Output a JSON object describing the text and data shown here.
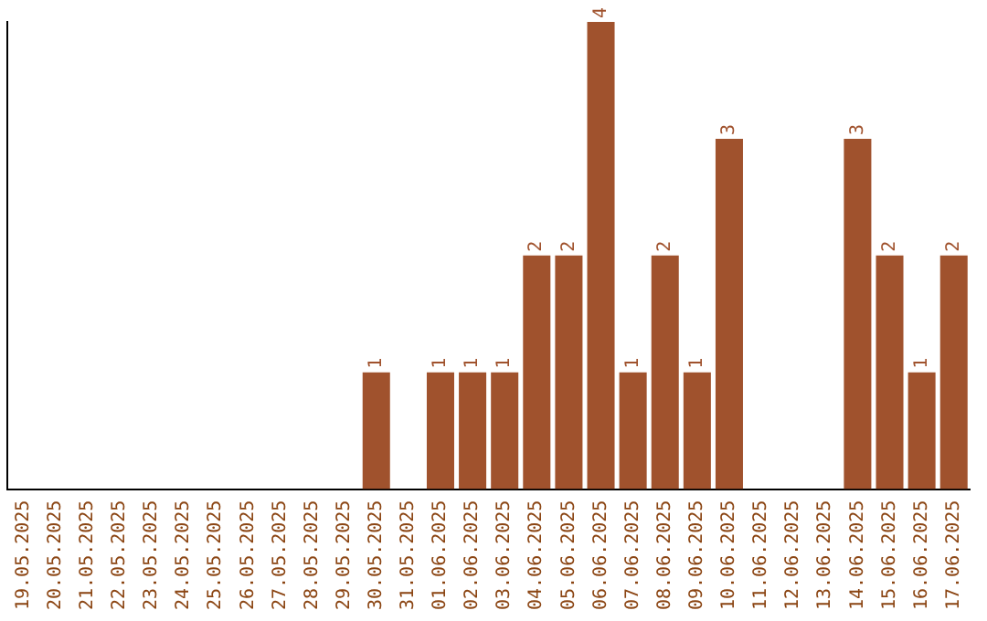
{
  "chart_data": {
    "type": "bar",
    "categories": [
      "19.05.2025",
      "20.05.2025",
      "21.05.2025",
      "22.05.2025",
      "23.05.2025",
      "24.05.2025",
      "25.05.2025",
      "26.05.2025",
      "27.05.2025",
      "28.05.2025",
      "29.05.2025",
      "30.05.2025",
      "31.05.2025",
      "01.06.2025",
      "02.06.2025",
      "03.06.2025",
      "04.06.2025",
      "05.06.2025",
      "06.06.2025",
      "07.06.2025",
      "08.06.2025",
      "09.06.2025",
      "10.06.2025",
      "11.06.2025",
      "12.06.2025",
      "13.06.2025",
      "14.06.2025",
      "15.06.2025",
      "16.06.2025",
      "17.06.2025"
    ],
    "values": [
      0,
      0,
      0,
      0,
      0,
      0,
      0,
      0,
      0,
      0,
      0,
      1,
      0,
      1,
      1,
      1,
      2,
      2,
      4,
      1,
      2,
      1,
      3,
      0,
      0,
      0,
      3,
      2,
      1,
      2
    ],
    "value_labels": [
      null,
      null,
      null,
      null,
      null,
      null,
      null,
      null,
      null,
      null,
      null,
      "1",
      null,
      "1",
      "1",
      "1",
      "2",
      "2",
      "4",
      "1",
      "2",
      "1",
      "3",
      null,
      null,
      null,
      "3",
      "2",
      "1",
      "2"
    ],
    "color": "#a0522d",
    "ylim": [
      0,
      4
    ],
    "tick_labels": "x",
    "grid": false,
    "legend": false
  }
}
